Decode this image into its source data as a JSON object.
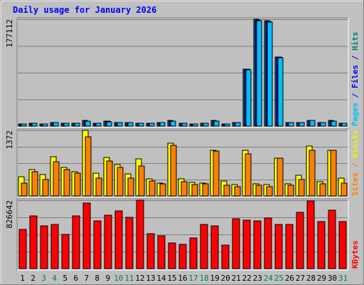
{
  "chart_data": {
    "type": "bar",
    "title": "Daily usage for January 2026",
    "days": [
      "1",
      "2",
      "3",
      "4",
      "5",
      "6",
      "7",
      "8",
      "9",
      "10",
      "11",
      "12",
      "13",
      "14",
      "15",
      "16",
      "17",
      "18",
      "19",
      "20",
      "21",
      "22",
      "23",
      "24",
      "25",
      "26",
      "27",
      "28",
      "29",
      "30",
      "31"
    ],
    "weekend_days": [
      "3",
      "4",
      "10",
      "11",
      "17",
      "18",
      "24",
      "25",
      "31"
    ],
    "panels": [
      {
        "id": "hits",
        "max_label": "177112",
        "ymax": 177112,
        "right_labels": [
          {
            "text": "Pages",
            "color": "#00c0ff"
          },
          {
            "text": " / ",
            "color": "#0000ff"
          },
          {
            "text": "Files",
            "color": "#0000ff"
          },
          {
            "text": " / ",
            "color": "#0000ff"
          },
          {
            "text": "Hits",
            "color": "#008080"
          }
        ],
        "series": [
          {
            "key": "hits",
            "color": "#008080",
            "values": [
              4000,
              5000,
              4000,
              6000,
              5000,
              5000,
              9000,
              5000,
              8000,
              6000,
              6000,
              5000,
              5000,
              6000,
              9000,
              5000,
              4000,
              5000,
              9000,
              4000,
              6000,
              95000,
              177112,
              175000,
              115000,
              6000,
              6000,
              10000,
              6000,
              9000,
              5000
            ]
          },
          {
            "key": "files",
            "color": "#0000ff",
            "values": [
              3800,
              4800,
              3800,
              5800,
              4800,
              4800,
              8800,
              4800,
              7800,
              5800,
              5800,
              4800,
              4800,
              5800,
              8800,
              4800,
              3800,
              4800,
              8800,
              3800,
              5800,
              94000,
              176000,
              174000,
              114000,
              5800,
              5800,
              9800,
              5800,
              8800,
              4800
            ]
          },
          {
            "key": "pages",
            "color": "#00c0ff",
            "values": [
              3500,
              4500,
              3500,
              5500,
              4500,
              4500,
              8500,
              4500,
              7500,
              5500,
              5500,
              4500,
              4500,
              5500,
              8500,
              4500,
              3500,
              4500,
              8500,
              3500,
              5500,
              93000,
              175000,
              172000,
              113000,
              5500,
              5500,
              9500,
              5500,
              8500,
              4500
            ]
          }
        ]
      },
      {
        "id": "visits",
        "max_label": "1372",
        "ymax": 1372,
        "right_labels": [
          {
            "text": "Sites",
            "color": "#ff8000"
          },
          {
            "text": " / ",
            "color": "#ff8000"
          },
          {
            "text": "Visits",
            "color": "#f0f000"
          }
        ],
        "series": [
          {
            "key": "visits",
            "color": "#ffff00",
            "values": [
              410,
              550,
              450,
              820,
              600,
              500,
              1372,
              480,
              810,
              660,
              460,
              770,
              360,
              270,
              1110,
              360,
              280,
              270,
              950,
              320,
              240,
              950,
              260,
              240,
              790,
              260,
              430,
              1050,
              300,
              950,
              380
            ]
          },
          {
            "key": "sites",
            "color": "#ff8000",
            "values": [
              270,
              510,
              340,
              720,
              550,
              470,
              1240,
              370,
              730,
              590,
              380,
              630,
              310,
              260,
              1060,
              300,
              240,
              260,
              940,
              230,
              200,
              880,
              230,
              200,
              790,
              220,
              340,
              960,
              250,
              950,
              270
            ]
          }
        ]
      },
      {
        "id": "kbytes",
        "max_label": "826642",
        "ymax": 826642,
        "right_labels": [
          {
            "text": "KBytes",
            "color": "#ff0000"
          }
        ],
        "series": [
          {
            "key": "kbytes",
            "color": "#ff0000",
            "values": [
              475000,
              640000,
              518000,
              530000,
              410000,
              640000,
              795000,
              575000,
              648000,
              700000,
              620000,
              826642,
              420000,
              400000,
              310000,
              290000,
              372000,
              530000,
              518000,
              280000,
              606000,
              588000,
              580000,
              612000,
              530000,
              530000,
              682000,
              818000,
              565000,
              705000,
              565000
            ]
          }
        ]
      }
    ]
  }
}
